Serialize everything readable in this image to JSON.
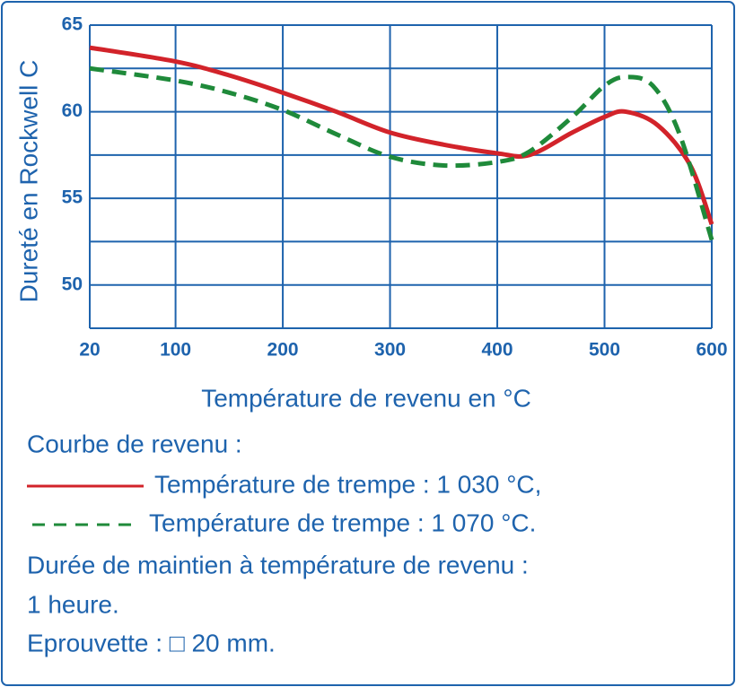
{
  "chart_data": {
    "type": "line",
    "y_label": "Dureté en Rockwell C",
    "x_label": "Température de revenu en °C",
    "xlim": [
      20,
      600
    ],
    "xticks": [
      20,
      100,
      200,
      300,
      400,
      500,
      600
    ],
    "ylim": [
      47.5,
      65
    ],
    "yticks": [
      50,
      55,
      60,
      65
    ],
    "y_minor_ticks": [
      52.5,
      57.5,
      62.5
    ],
    "grid": true,
    "legend_title": "Courbe de revenu :",
    "series": [
      {
        "name": "Température de trempe : 1 030 °C,",
        "color": "#d2232a",
        "dash": false,
        "x": [
          20,
          100,
          150,
          200,
          250,
          300,
          350,
          400,
          430,
          470,
          500,
          520,
          550,
          580,
          600
        ],
        "values": [
          63.7,
          62.9,
          62.1,
          61.1,
          60.0,
          58.8,
          58.1,
          57.6,
          57.5,
          58.8,
          59.7,
          60.0,
          59.2,
          56.9,
          53.5
        ]
      },
      {
        "name": "Température de trempe : 1 070 °C.",
        "color": "#1f8a3a",
        "dash": true,
        "x": [
          20,
          100,
          150,
          200,
          250,
          300,
          350,
          400,
          430,
          470,
          500,
          520,
          545,
          570,
          600
        ],
        "values": [
          62.5,
          61.8,
          61.1,
          60.1,
          58.7,
          57.4,
          56.9,
          57.1,
          57.7,
          59.7,
          61.5,
          62.0,
          61.5,
          58.7,
          52.6
        ]
      }
    ],
    "notes": [
      "Durée de maintien à température de revenu :",
      "1 heure.",
      "Eprouvette : □ 20 mm."
    ]
  }
}
